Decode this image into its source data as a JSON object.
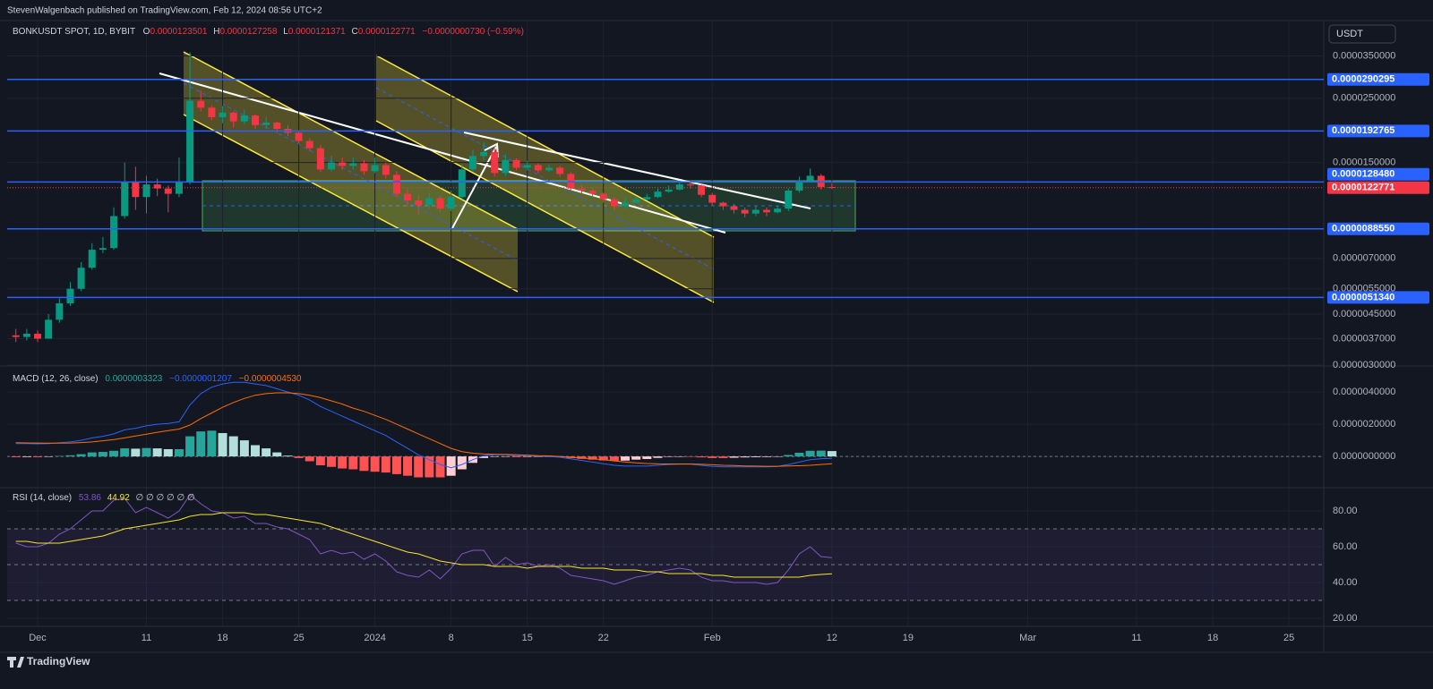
{
  "header": {
    "publisher": "StevenWalgenbach published on TradingView.com, Feb 12, 2024 08:56 UTC+2",
    "currency_button": "USDT",
    "footer": "TradingView"
  },
  "chart_data": [
    {
      "type": "candlestick",
      "title": "BONKUSDT SPOT, 1D, BYBIT",
      "ohlc": [
        {
          "key": "O",
          "value": "0.0000123501"
        },
        {
          "key": "H",
          "value": "0.0000127258"
        },
        {
          "key": "L",
          "value": "0.0000121371"
        },
        {
          "key": "C",
          "value": "0.0000122771"
        }
      ],
      "change": "−0.0000000730 (−0.59%)",
      "log": true,
      "grid": true,
      "up_color": "#089981",
      "down_color": "#f23645",
      "x": [
        -2,
        -1,
        0,
        1,
        2,
        3,
        4,
        5,
        6,
        7,
        8,
        9,
        10,
        11,
        12,
        13,
        14,
        15,
        16,
        17,
        18,
        19,
        20,
        21,
        22,
        23,
        24,
        25,
        26,
        27,
        28,
        29,
        30,
        31,
        32,
        33,
        34,
        35,
        36,
        37,
        38,
        39,
        40,
        41,
        42,
        43,
        44,
        45,
        46,
        47,
        48,
        49,
        50,
        51,
        52,
        53,
        54,
        55,
        56,
        57,
        58,
        59,
        60,
        61,
        62,
        63,
        64,
        65,
        66,
        67,
        68,
        69,
        70,
        71,
        72,
        73
      ],
      "open": [
        3.8e-06,
        3.75e-06,
        3.85e-06,
        3.7e-06,
        4.3e-06,
        4.9e-06,
        5.5e-06,
        6.5e-06,
        7.5e-06,
        7.6e-06,
        9.8e-06,
        1.28e-05,
        1.14e-05,
        1.26e-05,
        1.22e-05,
        1.17e-05,
        1.28e-05,
        2.45e-05,
        2.32e-05,
        2.15e-05,
        2.23e-05,
        2.08e-05,
        2.18e-05,
        2.02e-05,
        2.06e-05,
        1.96e-05,
        1.9e-05,
        1.78e-05,
        1.68e-05,
        1.42e-05,
        1.5e-05,
        1.46e-05,
        1.49e-05,
        1.4e-05,
        1.47e-05,
        1.36e-05,
        1.17e-05,
        1.11e-05,
        1.07e-05,
        1.13e-05,
        1.04e-05,
        1.14e-05,
        1.42e-05,
        1.58e-05,
        1.63e-05,
        1.38e-05,
        1.53e-05,
        1.44e-05,
        1.47e-05,
        1.41e-05,
        1.44e-05,
        1.37e-05,
        1.22e-05,
        1.2e-05,
        1.17e-05,
        1.12e-05,
        1.06e-05,
        1.09e-05,
        1.12e-05,
        1.14e-05,
        1.19e-05,
        1.21e-05,
        1.26e-05,
        1.25e-05,
        1.16e-05,
        1.09e-05,
        1.06e-05,
        1.03e-05,
        1e-05,
        1.03e-05,
        1.01e-05,
        1.04e-05,
        1.2e-05,
        1.3e-05,
        1.35e-05,
        1.23501e-05
      ],
      "high": [
        4e-06,
        4e-06,
        3.95e-06,
        4.5e-06,
        5.1e-06,
        5.8e-06,
        6.8e-06,
        7.9e-06,
        8.3e-06,
        1.05e-05,
        1.5e-05,
        1.45e-05,
        1.35e-05,
        1.32e-05,
        1.25e-05,
        1.56e-05,
        3.6e-05,
        2.65e-05,
        2.36e-05,
        2.35e-05,
        2.25e-05,
        2.28e-05,
        2.2e-05,
        2.15e-05,
        2.08e-05,
        2.02e-05,
        1.94e-05,
        1.82e-05,
        1.72e-05,
        1.58e-05,
        1.56e-05,
        1.56e-05,
        1.53e-05,
        1.56e-05,
        1.5e-05,
        1.4e-05,
        1.22e-05,
        1.16e-05,
        1.18e-05,
        1.15e-05,
        1.2e-05,
        1.48e-05,
        1.66e-05,
        1.76e-05,
        1.68e-05,
        1.6e-05,
        1.55e-05,
        1.52e-05,
        1.49e-05,
        1.48e-05,
        1.46e-05,
        1.39e-05,
        1.26e-05,
        1.23e-05,
        1.18e-05,
        1.14e-05,
        1.13e-05,
        1.15e-05,
        1.17e-05,
        1.22e-05,
        1.25e-05,
        1.3e-05,
        1.3e-05,
        1.26e-05,
        1.18e-05,
        1.1e-05,
        1.08e-05,
        1.05e-05,
        1.06e-05,
        1.05e-05,
        1.06e-05,
        1.22e-05,
        1.34e-05,
        1.43e-05,
        1.37e-05,
        1.27258e-05
      ],
      "low": [
        3.6e-06,
        3.65e-06,
        3.6e-06,
        3.7e-06,
        4.2e-06,
        4.8e-06,
        5.4e-06,
        6.4e-06,
        7.3e-06,
        7.5e-06,
        9.6e-06,
        1.03e-05,
        1e-05,
        1.15e-05,
        1.01e-05,
        1.14e-05,
        1.26e-05,
        2.25e-05,
        2.1e-05,
        2.05e-05,
        1.98e-05,
        2.03e-05,
        1.96e-05,
        1.96e-05,
        1.9e-05,
        1.85e-05,
        1.74e-05,
        1.64e-05,
        1.39e-05,
        1.4e-05,
        1.42e-05,
        1.42e-05,
        1.36e-05,
        1.38e-05,
        1.32e-05,
        1.14e-05,
        1.06e-05,
        9.9e-06,
        1.04e-05,
        1.01e-05,
        1.02e-05,
        1.12e-05,
        1.4e-05,
        1.53e-05,
        1.34e-05,
        1.35e-05,
        1.41e-05,
        1.41e-05,
        1.38e-05,
        1.39e-05,
        1.34e-05,
        1.2e-05,
        1.17e-05,
        1.14e-05,
        1.09e-05,
        1.03e-05,
        1.04e-05,
        1.09e-05,
        1.11e-05,
        1.13e-05,
        1.18e-05,
        1.2e-05,
        1.22e-05,
        1.14e-05,
        1.06e-05,
        1.03e-05,
        1e-05,
        9.7e-06,
        9.8e-06,
        9.8e-06,
        1e-05,
        1.02e-05,
        1.18e-05,
        1.28e-05,
        1.21e-05,
        1.21371e-05
      ],
      "close": [
        3.75e-06,
        3.85e-06,
        3.7e-06,
        4.3e-06,
        4.9e-06,
        5.5e-06,
        6.5e-06,
        7.5e-06,
        7.6e-06,
        9.8e-06,
        1.28e-05,
        1.14e-05,
        1.26e-05,
        1.22e-05,
        1.17e-05,
        1.28e-05,
        2.45e-05,
        2.32e-05,
        2.15e-05,
        2.23e-05,
        2.08e-05,
        2.18e-05,
        2.02e-05,
        2.06e-05,
        1.96e-05,
        1.9e-05,
        1.78e-05,
        1.68e-05,
        1.42e-05,
        1.5e-05,
        1.46e-05,
        1.49e-05,
        1.4e-05,
        1.47e-05,
        1.36e-05,
        1.17e-05,
        1.11e-05,
        1.07e-05,
        1.13e-05,
        1.04e-05,
        1.14e-05,
        1.42e-05,
        1.58e-05,
        1.63e-05,
        1.38e-05,
        1.53e-05,
        1.44e-05,
        1.47e-05,
        1.41e-05,
        1.44e-05,
        1.37e-05,
        1.22e-05,
        1.2e-05,
        1.17e-05,
        1.12e-05,
        1.06e-05,
        1.09e-05,
        1.12e-05,
        1.14e-05,
        1.19e-05,
        1.21e-05,
        1.26e-05,
        1.25e-05,
        1.16e-05,
        1.09e-05,
        1.06e-05,
        1.03e-05,
        1e-05,
        1.03e-05,
        1.01e-05,
        1.04e-05,
        1.2e-05,
        1.3e-05,
        1.35e-05,
        1.235e-05,
        1.22771e-05
      ],
      "ylim": [
        3e-06,
        4.6e-05
      ],
      "yticks": [
        {
          "value": 3.5e-05,
          "label": "0.0000350000"
        },
        {
          "value": 2.5e-05,
          "label": "0.0000250000"
        },
        {
          "value": 1.5e-05,
          "label": "0.0000150000"
        },
        {
          "value": 7e-06,
          "label": "0.0000070000"
        },
        {
          "value": 5.5e-06,
          "label": "0.0000055000"
        },
        {
          "value": 4.5e-06,
          "label": "0.0000045000"
        },
        {
          "value": 3.7e-06,
          "label": "0.0000037000"
        },
        {
          "value": 3e-06,
          "label": "0.0000030000"
        }
      ],
      "xlim": [
        -2.8,
        118.2
      ],
      "xticks": [
        {
          "value": 0,
          "label": "Dec"
        },
        {
          "value": 10,
          "label": "11"
        },
        {
          "value": 17,
          "label": "18"
        },
        {
          "value": 24,
          "label": "25"
        },
        {
          "value": 31,
          "label": "2024"
        },
        {
          "value": 38,
          "label": "8"
        },
        {
          "value": 45,
          "label": "15"
        },
        {
          "value": 52,
          "label": "22"
        },
        {
          "value": 62,
          "label": "Feb"
        },
        {
          "value": 73,
          "label": "12"
        },
        {
          "value": 80,
          "label": "19"
        },
        {
          "value": 91,
          "label": "Mar"
        },
        {
          "value": 101,
          "label": "11"
        },
        {
          "value": 108,
          "label": "18"
        },
        {
          "value": 115,
          "label": "25"
        }
      ],
      "levels": [
        {
          "value": 2.90295e-05,
          "label": "0.0000290295"
        },
        {
          "value": 1.92765e-05,
          "label": "0.0000192765"
        },
        {
          "value": 1.2848e-05,
          "label": "0.0000128480"
        },
        {
          "value": 8.855e-06,
          "label": "0.0000088550"
        },
        {
          "value": 5.134e-06,
          "label": "0.0000051340"
        }
      ],
      "level_color": "#2962ff",
      "last_price": {
        "value": 1.22771e-05,
        "label": "0.0000122771"
      }
    },
    {
      "type": "macd",
      "title": "MACD (12, 26, close)",
      "legend_values": [
        "0.0000003323",
        "−0.0000001207",
        "−0.0000004530"
      ],
      "histogram": [
        -5e-08,
        -4e-08,
        -5e-08,
        -2e-08,
        3e-08,
        7e-08,
        1.4e-07,
        2.5e-07,
        2.8e-07,
        3.5e-07,
        5e-07,
        4.8e-07,
        5.2e-07,
        5e-07,
        4.5e-07,
        4.5e-07,
        1.25e-06,
        1.55e-06,
        1.6e-06,
        1.45e-06,
        1.25e-06,
        1e-06,
        7e-07,
        5e-07,
        2.5e-07,
        5e-08,
        -1e-07,
        -3e-07,
        -5.5e-07,
        -6.5e-07,
        -7.5e-07,
        -8e-07,
        -9e-07,
        -9.5e-07,
        -1e-06,
        -1.1e-06,
        -1.2e-06,
        -1.3e-06,
        -1.3e-06,
        -1.3e-06,
        -1.2e-06,
        -8e-07,
        -4e-07,
        -1e-07,
        -3e-08,
        -2e-08,
        -5e-08,
        -3e-08,
        -5e-08,
        -3e-08,
        -5e-08,
        -1e-07,
        -1.5e-07,
        -2e-07,
        -2.5e-07,
        -2.7e-07,
        -2.6e-07,
        -2e-07,
        -1.6e-07,
        -9e-08,
        -3e-08,
        -1e-08,
        -1e-08,
        -6e-08,
        -1e-07,
        -1e-07,
        -8e-08,
        -6e-08,
        -5e-08,
        -4e-08,
        -1e-08,
        9e-08,
        2.3e-07,
        3.5e-07,
        3.6e-07,
        3.323e-07
      ],
      "histogram_colors": [
        "#26a69a",
        "#b2dfdb",
        "#ff5252",
        "#ffcdd2"
      ],
      "series": [
        {
          "color": "#2962ff",
          "values": [
            8e-07,
            8e-07,
            7.8e-07,
            8e-07,
            8.5e-07,
            9e-07,
            1e-06,
            1.15e-06,
            1.25e-06,
            1.4e-06,
            1.65e-06,
            1.75e-06,
            1.9e-06,
            2e-06,
            2.05e-06,
            2.15e-06,
            3.2e-06,
            3.9e-06,
            4.3e-06,
            4.5e-06,
            4.6e-06,
            4.6e-06,
            4.5e-06,
            4.4e-06,
            4.2e-06,
            4e-06,
            3.8e-06,
            3.5e-06,
            3.1e-06,
            2.8e-06,
            2.5e-06,
            2.2e-06,
            1.9e-06,
            1.6e-06,
            1.3e-06,
            9e-07,
            5e-07,
            1e-07,
            -2e-07,
            -5e-07,
            -7e-07,
            -5e-07,
            -2e-07,
            5e-08,
            1e-07,
            1e-07,
            5e-08,
            5e-08,
            0,
            0,
            -5e-08,
            -1.5e-07,
            -2.5e-07,
            -3.5e-07,
            -4.5e-07,
            -5.5e-07,
            -6e-07,
            -6e-07,
            -6e-07,
            -5.5e-07,
            -5e-07,
            -4.8e-07,
            -4.8e-07,
            -5.5e-07,
            -6.2e-07,
            -6.5e-07,
            -6.5e-07,
            -6.5e-07,
            -6.5e-07,
            -6.5e-07,
            -6.2e-07,
            -5e-07,
            -3.5e-07,
            -2e-07,
            -1.4e-07,
            -1.207e-07
          ]
        },
        {
          "color": "#ff6d00",
          "values": [
            8.5e-07,
            8.4e-07,
            8.3e-07,
            8.2e-07,
            8.2e-07,
            8.3e-07,
            8.6e-07,
            9e-07,
            9.7e-07,
            1.05e-06,
            1.15e-06,
            1.27e-06,
            1.38e-06,
            1.5e-06,
            1.6e-06,
            1.7e-06,
            1.95e-06,
            2.35e-06,
            2.7e-06,
            3.05e-06,
            3.35e-06,
            3.6e-06,
            3.8e-06,
            3.9e-06,
            3.95e-06,
            3.95e-06,
            3.9e-06,
            3.8e-06,
            3.65e-06,
            3.45e-06,
            3.25e-06,
            3e-06,
            2.8e-06,
            2.55e-06,
            2.3e-06,
            2e-06,
            1.7e-06,
            1.4e-06,
            1.1e-06,
            8e-07,
            5e-07,
            3e-07,
            2e-07,
            1.5e-07,
            1.3e-07,
            1.2e-07,
            1e-07,
            8e-08,
            5e-08,
            3e-08,
            0,
            -5e-08,
            -1e-07,
            -1.5e-07,
            -2e-07,
            -2.8e-07,
            -3.4e-07,
            -4e-07,
            -4.4e-07,
            -4.6e-07,
            -4.7e-07,
            -4.7e-07,
            -4.7e-07,
            -4.9e-07,
            -5.2e-07,
            -5.5e-07,
            -5.7e-07,
            -5.9e-07,
            -6e-07,
            -6.1e-07,
            -6.1e-07,
            -5.9e-07,
            -5.8e-07,
            -5.5e-07,
            -5e-07,
            -4.53e-07
          ]
        }
      ],
      "ylim": [
        -1.94e-06,
        5.56e-06
      ],
      "yticks": [
        {
          "value": 4e-06,
          "label": "0.0000040000"
        },
        {
          "value": 2e-06,
          "label": "0.0000020000"
        },
        {
          "value": 0,
          "label": "0.0000000000"
        }
      ],
      "zero_line": true
    },
    {
      "type": "rsi",
      "title": "RSI (14, close)",
      "legend_values": [
        "53.86",
        "44.92",
        "∅ ∅ ∅ ∅ ∅ ∅"
      ],
      "series": [
        {
          "color": "#7e57c2",
          "values": [
            62,
            60,
            60,
            62,
            67,
            70,
            75,
            80,
            80,
            86,
            87,
            79,
            82,
            79,
            76,
            80,
            89,
            84,
            80,
            79,
            76,
            77,
            73,
            73,
            71,
            70,
            67,
            64,
            56,
            58,
            56,
            57,
            53,
            56,
            52,
            46,
            44,
            43,
            47,
            42,
            48,
            56,
            58,
            58,
            49,
            54,
            50,
            51,
            49,
            50,
            48,
            44,
            43,
            42,
            41,
            39,
            41,
            43,
            44,
            46,
            47,
            48,
            47,
            43,
            41,
            41,
            40,
            40,
            40,
            39,
            40,
            47,
            56,
            60,
            54.5,
            53.86
          ]
        },
        {
          "color": "#f7e52d",
          "values": [
            63,
            63,
            62,
            62,
            62,
            63,
            64,
            65,
            66,
            68,
            70,
            71,
            72,
            73,
            74,
            75,
            77,
            78,
            78,
            79,
            79,
            79,
            78,
            78,
            77,
            76,
            75,
            74,
            73,
            71,
            69,
            67,
            65,
            63,
            61,
            59,
            57,
            56,
            54,
            52,
            51,
            50,
            50,
            50,
            49,
            49,
            49,
            48,
            49,
            49,
            49,
            49,
            48,
            48,
            48,
            47,
            47,
            47,
            46,
            46,
            45,
            45,
            45,
            45,
            44,
            44,
            43,
            43,
            43,
            43,
            43,
            43,
            43,
            44,
            44.5,
            44.92
          ]
        }
      ],
      "bands": [
        70,
        50,
        30
      ],
      "ylim": [
        15.5,
        93
      ],
      "yticks": [
        {
          "value": 80,
          "label": "80.00"
        },
        {
          "value": 60,
          "label": "60.00"
        },
        {
          "value": 40,
          "label": "40.00"
        },
        {
          "value": 20,
          "label": "20.00"
        }
      ]
    }
  ]
}
